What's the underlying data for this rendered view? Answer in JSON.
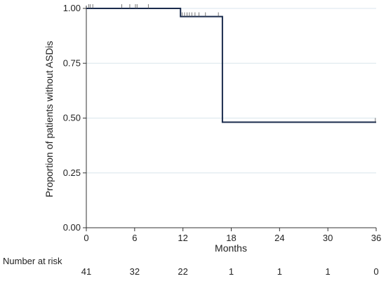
{
  "chart_data": {
    "type": "line",
    "subtype": "kaplan-meier-step",
    "xlabel": "Months",
    "ylabel": "Proportion of patients without ASDis",
    "xlim": [
      0,
      36
    ],
    "ylim": [
      0,
      1
    ],
    "x_ticks": [
      0,
      6,
      12,
      18,
      24,
      30,
      36
    ],
    "y_ticks": [
      0.0,
      0.25,
      0.5,
      0.75,
      1.0
    ],
    "y_tick_labels": [
      "0.00",
      "0.25",
      "0.50",
      "0.75",
      "1.00"
    ],
    "grid": "horizontal",
    "line_color": "#1a2b4c",
    "grid_color": "#d8e6ec",
    "series": [
      {
        "steps": [
          {
            "x": 0,
            "y": 1.0
          },
          {
            "x": 11.7,
            "y": 1.0
          },
          {
            "x": 11.7,
            "y": 0.963
          },
          {
            "x": 16.9,
            "y": 0.963
          },
          {
            "x": 16.9,
            "y": 0.481
          },
          {
            "x": 36,
            "y": 0.481
          }
        ],
        "censored": [
          {
            "x": 0.3,
            "y": 1.0
          },
          {
            "x": 0.5,
            "y": 1.0
          },
          {
            "x": 0.8,
            "y": 1.0
          },
          {
            "x": 4.4,
            "y": 1.0
          },
          {
            "x": 5.4,
            "y": 1.0
          },
          {
            "x": 6.1,
            "y": 1.0
          },
          {
            "x": 6.3,
            "y": 1.0
          },
          {
            "x": 7.7,
            "y": 1.0
          },
          {
            "x": 11.9,
            "y": 0.963
          },
          {
            "x": 12.2,
            "y": 0.963
          },
          {
            "x": 12.5,
            "y": 0.963
          },
          {
            "x": 12.8,
            "y": 0.963
          },
          {
            "x": 13.1,
            "y": 0.963
          },
          {
            "x": 13.5,
            "y": 0.963
          },
          {
            "x": 14.0,
            "y": 0.963
          },
          {
            "x": 14.8,
            "y": 0.963
          },
          {
            "x": 16.4,
            "y": 0.963
          },
          {
            "x": 35.9,
            "y": 0.481
          }
        ]
      }
    ],
    "risk_table": {
      "title": "Number at risk",
      "times": [
        0,
        6,
        12,
        18,
        24,
        30,
        36
      ],
      "values": [
        "41",
        "32",
        "22",
        "1",
        "1",
        "1",
        "0"
      ]
    }
  }
}
